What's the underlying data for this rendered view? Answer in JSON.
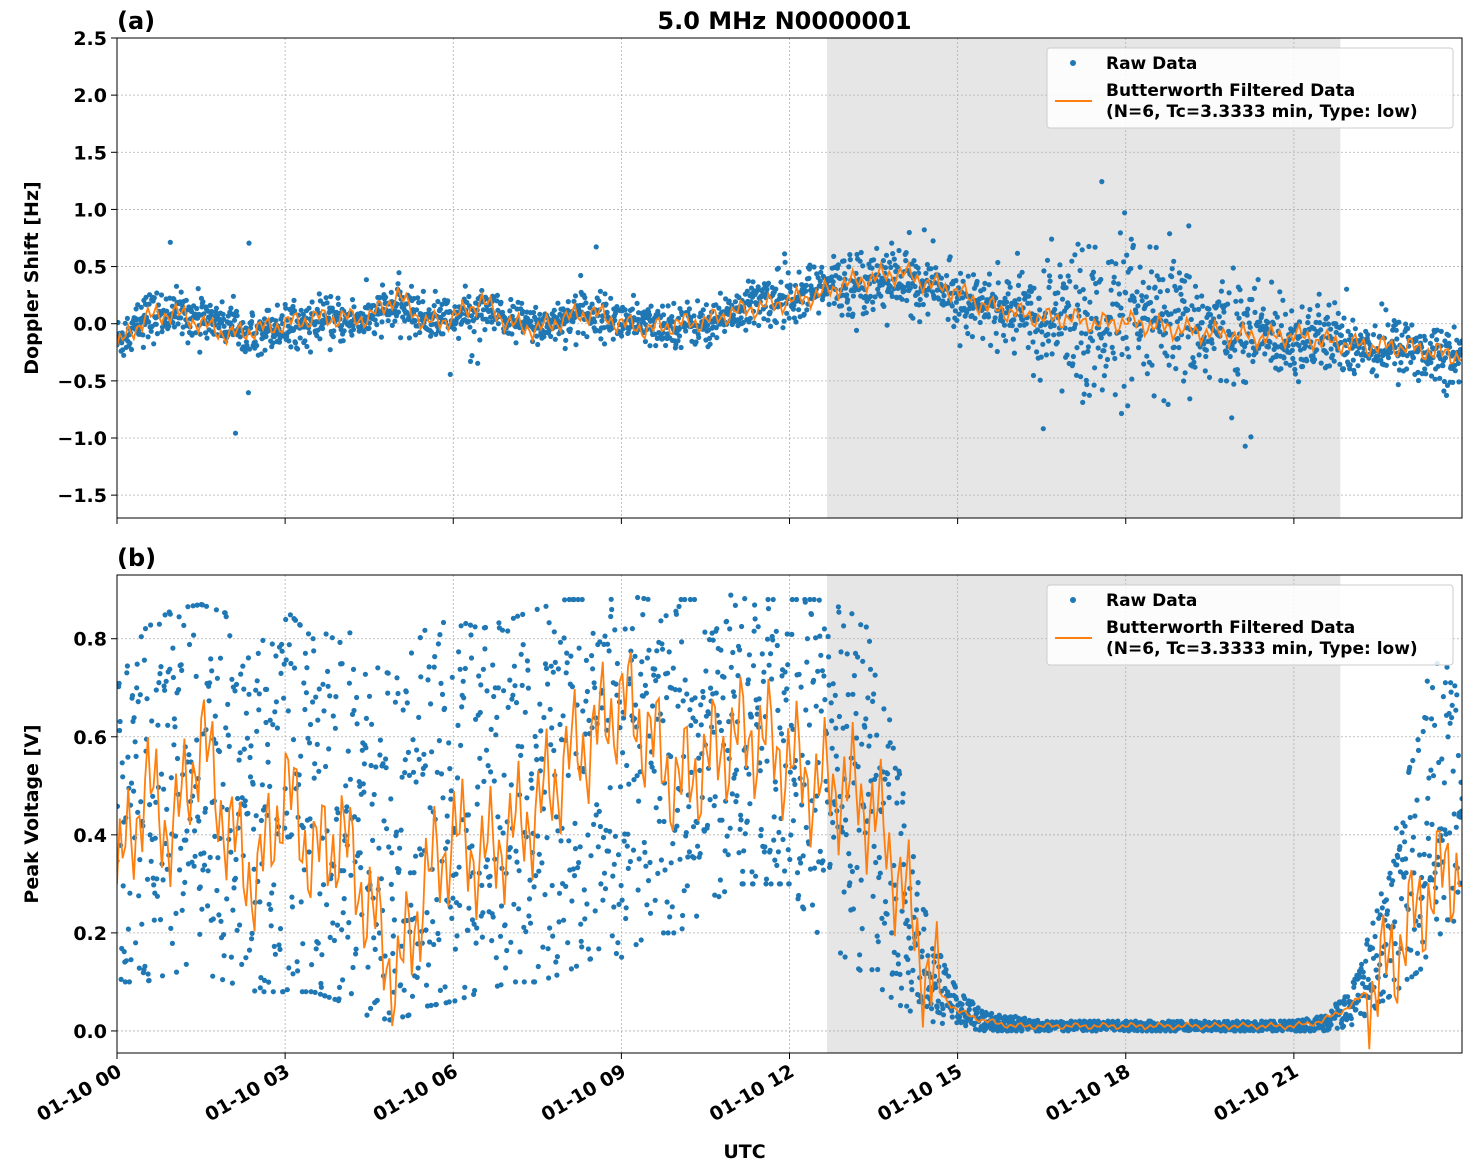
{
  "chart_data": [
    {
      "type": "scatter",
      "panel_label": "(a)",
      "title": "5.0 MHz N0000001",
      "ylabel": "Doppler Shift [Hz]",
      "xlabel": "",
      "x_unit": "hours UTC on 01-10",
      "xlim": [
        0,
        24
      ],
      "ylim": [
        -1.7,
        2.5
      ],
      "yticks": [
        "2.5",
        "2.0",
        "1.5",
        "1.0",
        "0.5",
        "0.0",
        "−0.5",
        "−1.0",
        "−1.5"
      ],
      "ytick_values": [
        2.5,
        2.0,
        1.5,
        1.0,
        0.5,
        0.0,
        -0.5,
        -1.0,
        -1.5
      ],
      "grid": true,
      "shaded_region": [
        12.67,
        21.83
      ],
      "legend": {
        "placement": "top-right",
        "entries": [
          "Raw Data",
          "Butterworth Filtered Data",
          "(N=6, Tc=3.3333 min, Type: low)"
        ]
      },
      "series": [
        {
          "name": "Raw Data",
          "color": "#1f77b4",
          "x": [
            0,
            0.5,
            1,
            1.5,
            2,
            2.5,
            3,
            3.5,
            4,
            4.5,
            5,
            5.5,
            6,
            6.5,
            7,
            7.5,
            8,
            8.5,
            9,
            9.5,
            10,
            10.5,
            11,
            11.5,
            12,
            12.5,
            13,
            13.5,
            14,
            14.5,
            15,
            15.5,
            16,
            16.5,
            17,
            17.5,
            18,
            18.5,
            19,
            19.5,
            20,
            20.5,
            21,
            21.5,
            22,
            22.5,
            23,
            23.5,
            24
          ],
          "center": [
            -0.15,
            0.05,
            0.1,
            0.05,
            0.0,
            -0.05,
            -0.02,
            0.0,
            0.02,
            0.05,
            0.15,
            0.05,
            0.05,
            0.12,
            0.02,
            -0.02,
            0.05,
            0.1,
            0.02,
            -0.02,
            0.0,
            0.0,
            0.1,
            0.2,
            0.25,
            0.3,
            0.35,
            0.4,
            0.38,
            0.33,
            0.25,
            0.15,
            0.1,
            0.05,
            0.05,
            0.0,
            0.0,
            -0.02,
            -0.05,
            -0.05,
            -0.08,
            -0.1,
            -0.12,
            -0.15,
            -0.18,
            -0.2,
            -0.22,
            -0.25,
            -0.28
          ],
          "spread": [
            0.2,
            0.2,
            0.18,
            0.18,
            0.17,
            0.17,
            0.17,
            0.17,
            0.17,
            0.17,
            0.18,
            0.17,
            0.17,
            0.17,
            0.17,
            0.17,
            0.17,
            0.17,
            0.17,
            0.17,
            0.17,
            0.17,
            0.17,
            0.2,
            0.22,
            0.22,
            0.25,
            0.25,
            0.25,
            0.22,
            0.22,
            0.22,
            0.3,
            0.45,
            0.6,
            0.65,
            0.65,
            0.6,
            0.55,
            0.45,
            0.4,
            0.35,
            0.3,
            0.28,
            0.25,
            0.25,
            0.25,
            0.25,
            0.25
          ]
        },
        {
          "name": "Butterworth Filtered Data",
          "color": "#ff7f0e",
          "x": [
            0,
            0.5,
            1,
            1.5,
            2,
            2.5,
            3,
            3.5,
            4,
            4.5,
            5,
            5.5,
            6,
            6.5,
            7,
            7.5,
            8,
            8.5,
            9,
            9.5,
            10,
            10.5,
            11,
            11.5,
            12,
            12.5,
            13,
            13.5,
            14,
            14.5,
            15,
            15.5,
            16,
            16.5,
            17,
            17.5,
            18,
            18.5,
            19,
            19.5,
            20,
            20.5,
            21,
            21.5,
            22,
            22.5,
            23,
            23.5,
            24
          ],
          "y": [
            -0.2,
            0.05,
            0.1,
            0.0,
            -0.1,
            -0.05,
            0.0,
            0.05,
            0.05,
            0.05,
            0.25,
            0.0,
            0.05,
            0.2,
            0.0,
            -0.05,
            0.05,
            0.1,
            0.0,
            -0.05,
            0.0,
            0.02,
            0.1,
            0.15,
            0.2,
            0.25,
            0.35,
            0.4,
            0.45,
            0.35,
            0.28,
            0.15,
            0.1,
            0.05,
            0.05,
            0.0,
            0.02,
            -0.02,
            -0.05,
            -0.08,
            -0.1,
            -0.12,
            -0.1,
            -0.15,
            -0.18,
            -0.2,
            -0.2,
            -0.25,
            -0.28
          ]
        }
      ]
    },
    {
      "type": "scatter",
      "panel_label": "(b)",
      "title": "",
      "ylabel": "Peak Voltage [V]",
      "xlabel": "UTC",
      "x_unit": "hours UTC on 01-10",
      "xlim": [
        0,
        24
      ],
      "ylim": [
        -0.045,
        0.93
      ],
      "yticks": [
        "0.8",
        "0.6",
        "0.4",
        "0.2",
        "0.0"
      ],
      "ytick_values": [
        0.8,
        0.6,
        0.4,
        0.2,
        0.0
      ],
      "xticks": [
        "01-10 00",
        "01-10 03",
        "01-10 06",
        "01-10 09",
        "01-10 12",
        "01-10 15",
        "01-10 18",
        "01-10 21"
      ],
      "xtick_values": [
        0,
        3,
        6,
        9,
        12,
        15,
        18,
        21
      ],
      "grid": true,
      "shaded_region": [
        12.67,
        21.83
      ],
      "legend": {
        "placement": "top-right",
        "entries": [
          "Raw Data",
          "Butterworth Filtered Data",
          "(N=6, Tc=3.3333 min, Type: low)"
        ]
      },
      "series": [
        {
          "name": "Raw Data",
          "color": "#1f77b4",
          "x": [
            0,
            0.5,
            1,
            1.5,
            2,
            2.5,
            3,
            3.5,
            4,
            4.5,
            5,
            5.5,
            6,
            6.5,
            7,
            7.5,
            8,
            8.5,
            9,
            9.5,
            10,
            10.5,
            11,
            11.5,
            12,
            12.5,
            13,
            13.5,
            14,
            14.5,
            15,
            15.5,
            16,
            16.5,
            17,
            17.5,
            18,
            18.5,
            19,
            19.5,
            20,
            20.5,
            21,
            21.5,
            22,
            22.5,
            23,
            23.5,
            24
          ],
          "low": [
            0.1,
            0.1,
            0.12,
            0.12,
            0.1,
            0.08,
            0.08,
            0.08,
            0.06,
            0.03,
            0.02,
            0.05,
            0.06,
            0.08,
            0.1,
            0.1,
            0.12,
            0.15,
            0.15,
            0.2,
            0.2,
            0.25,
            0.3,
            0.3,
            0.3,
            0.2,
            0.15,
            0.1,
            0.05,
            0.02,
            0.01,
            0.0,
            0.0,
            0.0,
            0.0,
            0.0,
            0.0,
            0.0,
            0.0,
            0.0,
            0.0,
            0.0,
            0.0,
            0.0,
            0.01,
            0.05,
            0.1,
            0.15,
            0.2
          ],
          "high": [
            0.7,
            0.82,
            0.86,
            0.87,
            0.85,
            0.78,
            0.86,
            0.8,
            0.84,
            0.75,
            0.72,
            0.82,
            0.84,
            0.82,
            0.84,
            0.86,
            0.88,
            0.88,
            0.89,
            0.88,
            0.88,
            0.88,
            0.89,
            0.88,
            0.88,
            0.88,
            0.86,
            0.82,
            0.5,
            0.2,
            0.08,
            0.04,
            0.03,
            0.02,
            0.02,
            0.02,
            0.02,
            0.02,
            0.02,
            0.02,
            0.02,
            0.02,
            0.02,
            0.03,
            0.08,
            0.25,
            0.5,
            0.78,
            0.7
          ]
        },
        {
          "name": "Butterworth Filtered Data",
          "color": "#ff7f0e",
          "x": [
            0,
            0.5,
            1,
            1.5,
            2,
            2.5,
            3,
            3.5,
            4,
            4.5,
            5,
            5.5,
            6,
            6.5,
            7,
            7.5,
            8,
            8.5,
            9,
            9.5,
            10,
            10.5,
            11,
            11.5,
            12,
            12.5,
            13,
            13.5,
            14,
            14.5,
            15,
            15.5,
            16,
            16.5,
            17,
            17.5,
            18,
            18.5,
            19,
            19.5,
            20,
            20.5,
            21,
            21.5,
            22,
            22.5,
            23,
            23.5,
            24
          ],
          "y": [
            0.3,
            0.5,
            0.4,
            0.6,
            0.4,
            0.3,
            0.5,
            0.35,
            0.4,
            0.25,
            0.1,
            0.3,
            0.4,
            0.35,
            0.4,
            0.45,
            0.55,
            0.6,
            0.68,
            0.6,
            0.5,
            0.55,
            0.6,
            0.6,
            0.55,
            0.5,
            0.5,
            0.45,
            0.3,
            0.1,
            0.04,
            0.02,
            0.01,
            0.01,
            0.01,
            0.01,
            0.01,
            0.01,
            0.01,
            0.01,
            0.01,
            0.01,
            0.01,
            0.02,
            0.05,
            0.1,
            0.2,
            0.3,
            0.35
          ]
        }
      ]
    }
  ],
  "colors": {
    "raw": "#1f77b4",
    "filtered": "#ff7f0e",
    "shade": "#e6e6e6",
    "grid": "#b0b0b0"
  }
}
